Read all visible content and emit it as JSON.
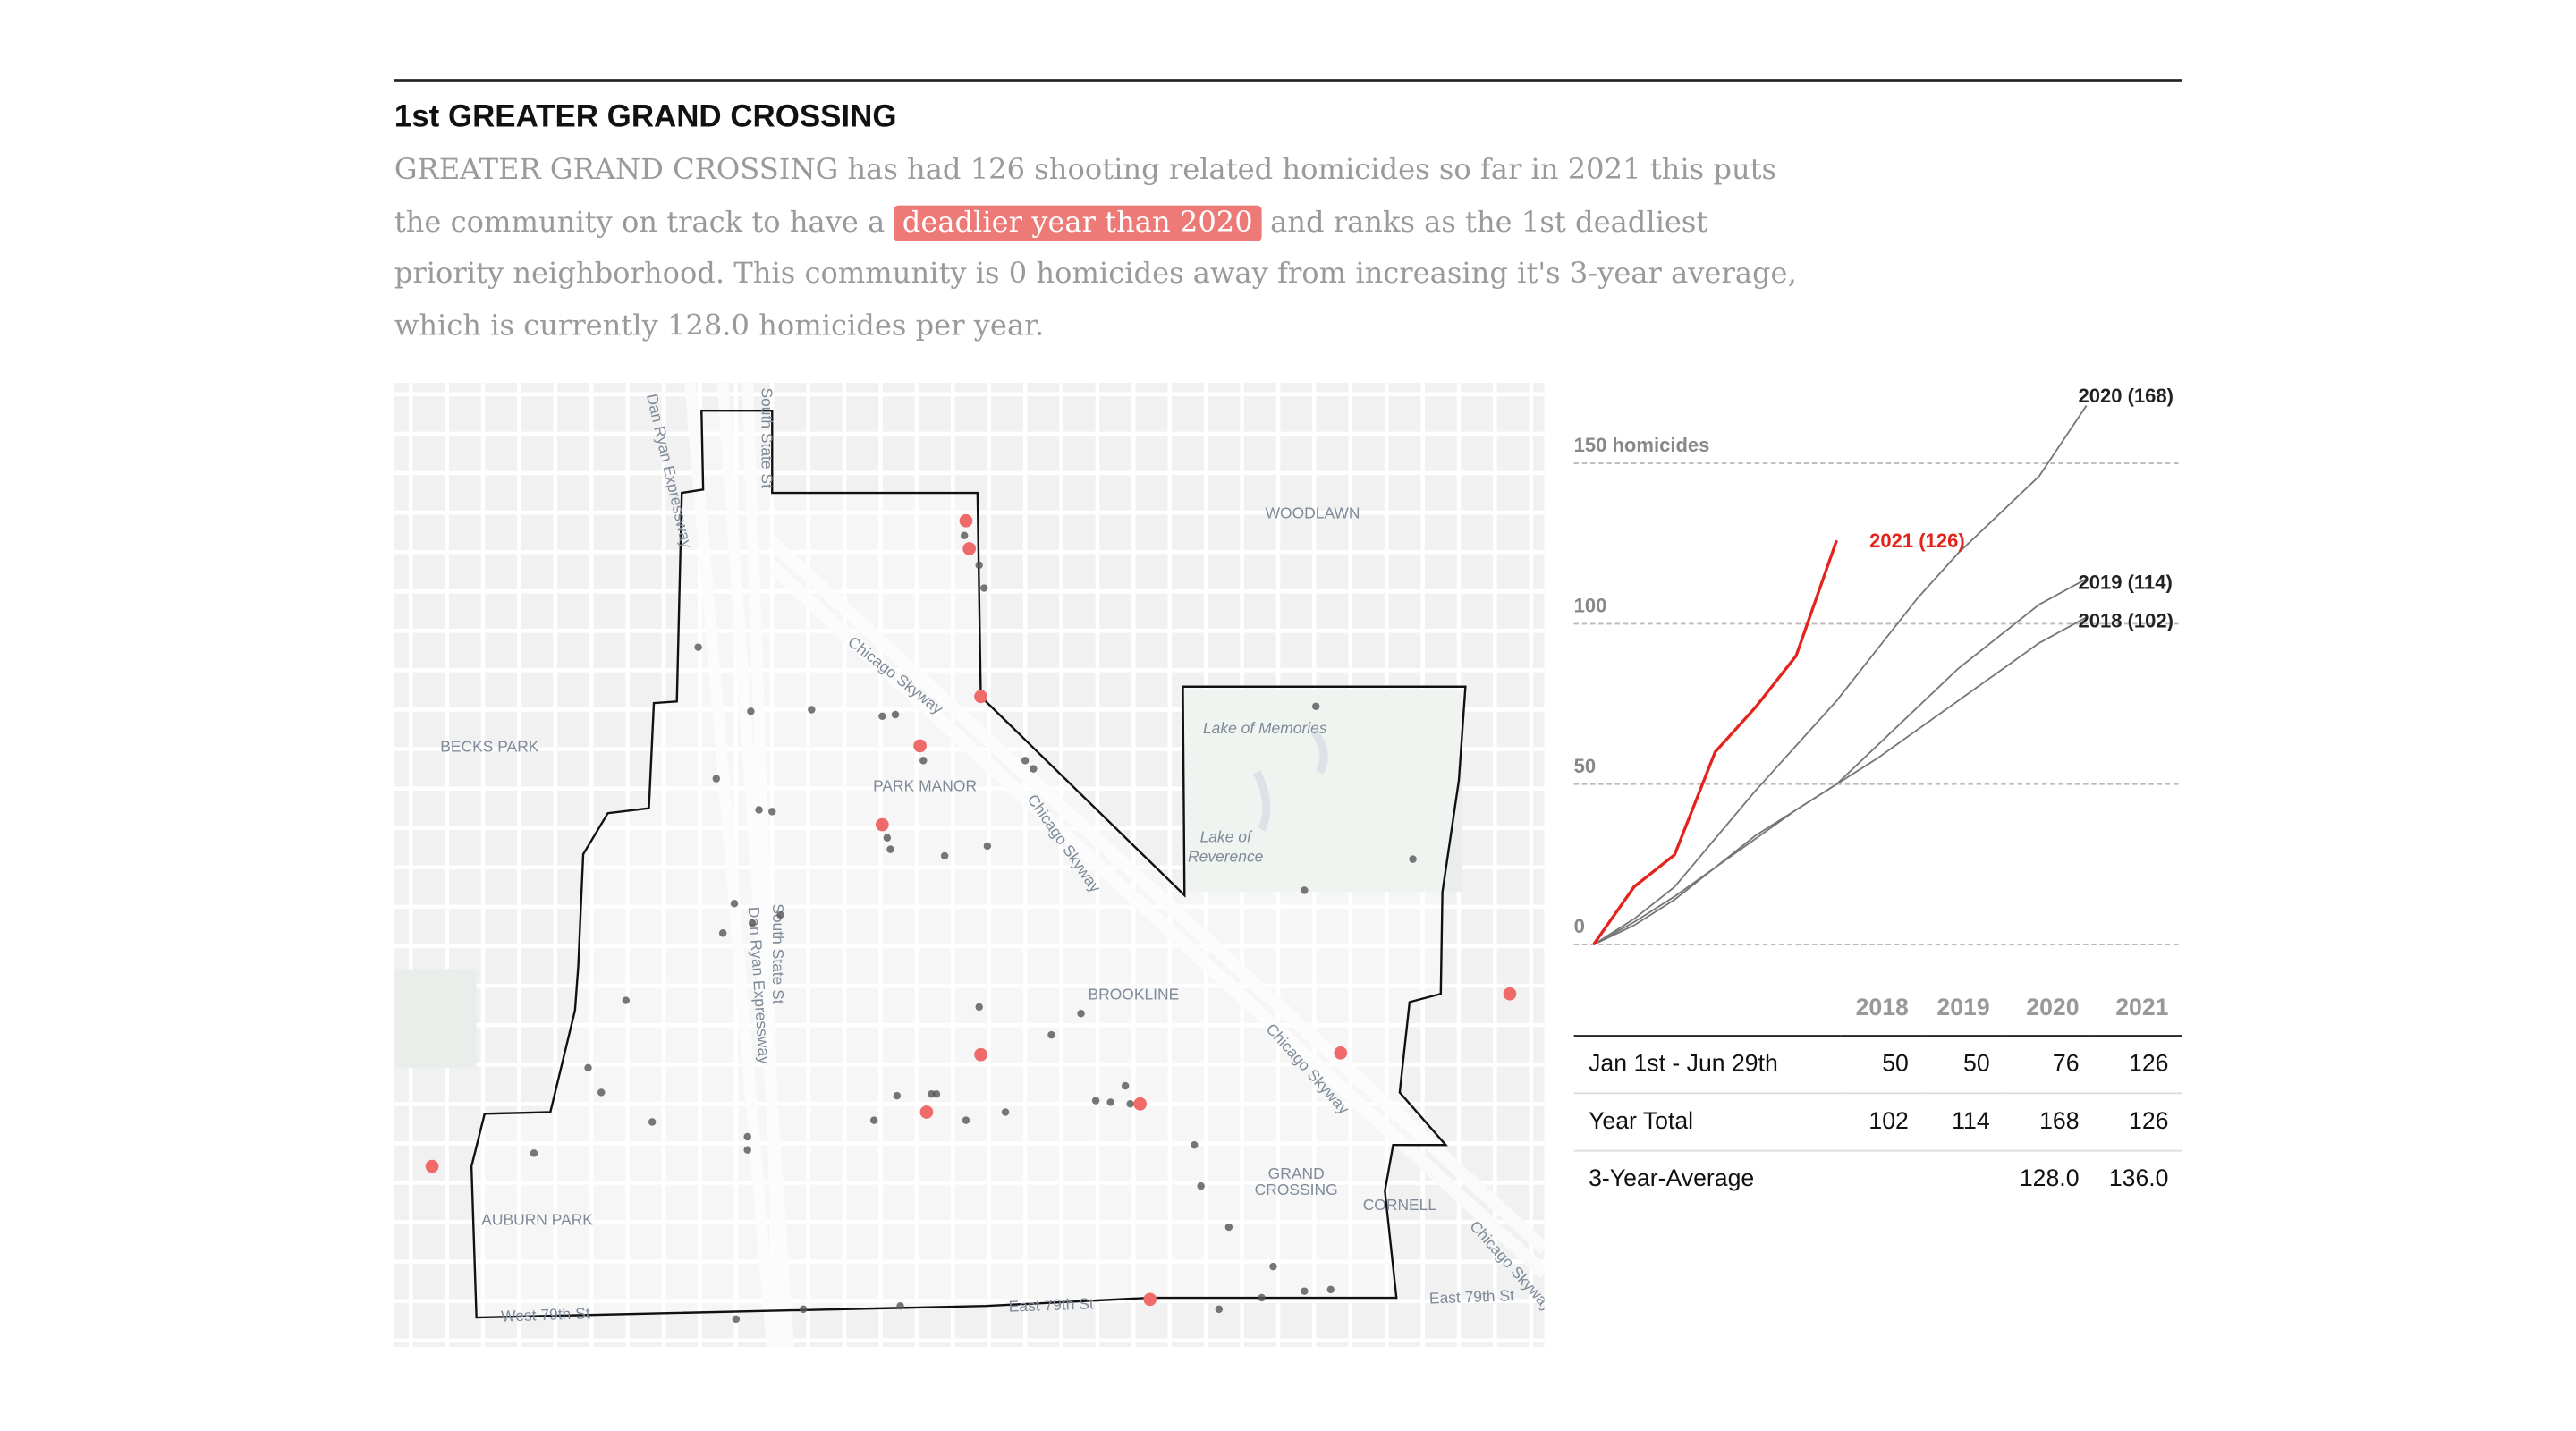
{
  "header": {
    "title": "1st GREATER GRAND CROSSING",
    "text_before": "GREATER GRAND CROSSING has had 126 shooting related homicides so far in 2021 this puts the community on track to have a",
    "highlight": "deadlier year than 2020",
    "text_after": "and ranks as the 1st deadliest priority neighborhood. This community is 0 homicides away from increasing it's 3-year average, which is currently 128.0 homicides per year."
  },
  "map": {
    "labels": [
      "Dan Ryan Expressway",
      "South State St",
      "Chicago Skyway",
      "Chicago Skyway",
      "Chicago Skyway",
      "Chicago Skyway",
      "WOODLAWN",
      "BECKS PARK",
      "PARK MANOR",
      "Lake of Memories",
      "Lake of",
      "Reverence",
      "South State St",
      "Dan Ryan Expressway",
      "BROOKLINE",
      "GRAND",
      "CROSSING",
      "CORNELL",
      "AUBURN PARK",
      "East 79th St",
      "East 79th St",
      "West 79th St"
    ]
  },
  "chart_data": {
    "type": "line",
    "x": [
      0,
      30,
      60,
      90,
      120,
      150,
      180,
      210,
      240,
      270,
      300,
      330,
      365
    ],
    "xlim": [
      0,
      365
    ],
    "ylim": [
      0,
      170
    ],
    "yticks": [
      0,
      50,
      100,
      {
        "value": 150,
        "label": "150 homicides"
      }
    ],
    "series": [
      {
        "name": "2018 (102)",
        "color": "#777777",
        "values": [
          0,
          7,
          15,
          24,
          33,
          42,
          50,
          58,
          67,
          76,
          85,
          94,
          102
        ]
      },
      {
        "name": "2019 (114)",
        "color": "#777777",
        "values": [
          0,
          6,
          14,
          24,
          34,
          42,
          50,
          62,
          74,
          86,
          96,
          106,
          114
        ]
      },
      {
        "name": "2020 (168)",
        "color": "#777777",
        "values": [
          0,
          8,
          18,
          33,
          48,
          62,
          76,
          92,
          108,
          122,
          134,
          146,
          168
        ]
      },
      {
        "name": "2021 (126)",
        "color": "#e3231c",
        "values": [
          0,
          18,
          28,
          60,
          74,
          90,
          126,
          null,
          null,
          null,
          null,
          null,
          null
        ]
      }
    ]
  },
  "table": {
    "columns": [
      "2018",
      "2019",
      "2020",
      "2021"
    ],
    "rows": [
      [
        "Jan 1st - Jun 29th",
        "50",
        "50",
        "76",
        "126"
      ],
      [
        "Year Total",
        "102",
        "114",
        "168",
        "126"
      ],
      [
        "3-Year-Average",
        null,
        null,
        "128.0",
        "136.0"
      ]
    ]
  }
}
